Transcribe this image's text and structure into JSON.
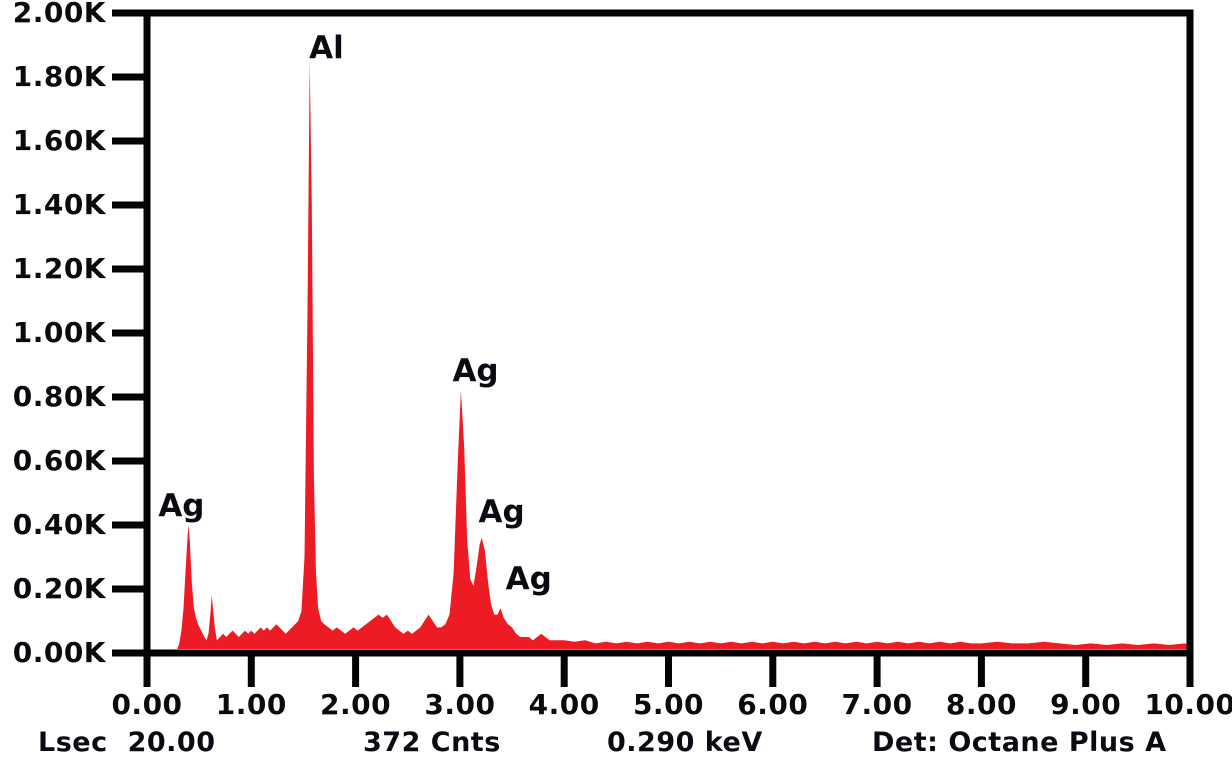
{
  "colors": {
    "spectrum_red": "#ED1C24",
    "axis_black": "#030303",
    "text_black": "#0a0a12",
    "background": "#ffffff"
  },
  "status_bar": {
    "lsec_label": "Lsec",
    "lsec_value": "20.00",
    "counts": "372 Cnts",
    "energy": "0.290 keV",
    "detector": "Det: Octane Plus A"
  },
  "chart_data": {
    "type": "area",
    "title": "",
    "xlabel": "",
    "ylabel": "",
    "x_unit": "keV",
    "y_unit": "K counts",
    "xlim": [
      0,
      10
    ],
    "ylim": [
      0,
      2.0
    ],
    "grid": false,
    "legend": false,
    "x_ticks": [
      {
        "value": 0,
        "label": "0.00"
      },
      {
        "value": 1,
        "label": "1.00"
      },
      {
        "value": 2,
        "label": "2.00"
      },
      {
        "value": 3,
        "label": "3.00"
      },
      {
        "value": 4,
        "label": "4.00"
      },
      {
        "value": 5,
        "label": "5.00"
      },
      {
        "value": 6,
        "label": "6.00"
      },
      {
        "value": 7,
        "label": "7.00"
      },
      {
        "value": 8,
        "label": "8.00"
      },
      {
        "value": 9,
        "label": "9.00"
      },
      {
        "value": 10,
        "label": "10.00"
      }
    ],
    "y_ticks": [
      {
        "value": 0.0,
        "label": "0.00K"
      },
      {
        "value": 0.2,
        "label": "0.20K"
      },
      {
        "value": 0.4,
        "label": "0.40K"
      },
      {
        "value": 0.6,
        "label": "0.60K"
      },
      {
        "value": 0.8,
        "label": "0.80K"
      },
      {
        "value": 1.0,
        "label": "1.00K"
      },
      {
        "value": 1.2,
        "label": "1.20K"
      },
      {
        "value": 1.4,
        "label": "1.40K"
      },
      {
        "value": 1.6,
        "label": "1.60K"
      },
      {
        "value": 1.8,
        "label": "1.80K"
      },
      {
        "value": 2.0,
        "label": "2.00K"
      }
    ],
    "peak_labels": [
      {
        "label": "Ag",
        "e": 0.33,
        "k": 0.46
      },
      {
        "label": "Al",
        "e": 1.72,
        "k": 1.89
      },
      {
        "label": "Ag",
        "e": 3.15,
        "k": 0.88
      },
      {
        "label": "Ag",
        "e": 3.4,
        "k": 0.44
      },
      {
        "label": "Ag",
        "e": 3.66,
        "k": 0.23
      }
    ],
    "series": [
      {
        "name": "EDS spectrum",
        "color": "#ED1C24",
        "points": [
          [
            0.29,
            0
          ],
          [
            0.31,
            0.03
          ],
          [
            0.33,
            0.07
          ],
          [
            0.35,
            0.14
          ],
          [
            0.37,
            0.26
          ],
          [
            0.39,
            0.37
          ],
          [
            0.4,
            0.4
          ],
          [
            0.41,
            0.35
          ],
          [
            0.43,
            0.22
          ],
          [
            0.45,
            0.14
          ],
          [
            0.47,
            0.11
          ],
          [
            0.49,
            0.09
          ],
          [
            0.52,
            0.07
          ],
          [
            0.55,
            0.05
          ],
          [
            0.57,
            0.04
          ],
          [
            0.59,
            0.06
          ],
          [
            0.61,
            0.13
          ],
          [
            0.62,
            0.18
          ],
          [
            0.63,
            0.15
          ],
          [
            0.65,
            0.08
          ],
          [
            0.67,
            0.04
          ],
          [
            0.7,
            0.05
          ],
          [
            0.73,
            0.06
          ],
          [
            0.76,
            0.05
          ],
          [
            0.79,
            0.06
          ],
          [
            0.82,
            0.07
          ],
          [
            0.85,
            0.06
          ],
          [
            0.88,
            0.05
          ],
          [
            0.91,
            0.06
          ],
          [
            0.94,
            0.07
          ],
          [
            0.97,
            0.06
          ],
          [
            1.0,
            0.07
          ],
          [
            1.03,
            0.06
          ],
          [
            1.06,
            0.07
          ],
          [
            1.09,
            0.08
          ],
          [
            1.12,
            0.07
          ],
          [
            1.15,
            0.08
          ],
          [
            1.18,
            0.07
          ],
          [
            1.21,
            0.08
          ],
          [
            1.24,
            0.09
          ],
          [
            1.27,
            0.08
          ],
          [
            1.3,
            0.07
          ],
          [
            1.33,
            0.06
          ],
          [
            1.36,
            0.07
          ],
          [
            1.39,
            0.08
          ],
          [
            1.42,
            0.09
          ],
          [
            1.45,
            0.1
          ],
          [
            1.48,
            0.13
          ],
          [
            1.51,
            0.3
          ],
          [
            1.54,
            1.1
          ],
          [
            1.56,
            1.85
          ],
          [
            1.58,
            1.4
          ],
          [
            1.6,
            0.55
          ],
          [
            1.62,
            0.25
          ],
          [
            1.64,
            0.14
          ],
          [
            1.67,
            0.1
          ],
          [
            1.7,
            0.09
          ],
          [
            1.74,
            0.08
          ],
          [
            1.78,
            0.07
          ],
          [
            1.82,
            0.08
          ],
          [
            1.86,
            0.07
          ],
          [
            1.9,
            0.06
          ],
          [
            1.94,
            0.07
          ],
          [
            1.98,
            0.08
          ],
          [
            2.02,
            0.07
          ],
          [
            2.06,
            0.08
          ],
          [
            2.1,
            0.09
          ],
          [
            2.14,
            0.1
          ],
          [
            2.18,
            0.11
          ],
          [
            2.22,
            0.12
          ],
          [
            2.26,
            0.11
          ],
          [
            2.3,
            0.12
          ],
          [
            2.34,
            0.1
          ],
          [
            2.38,
            0.08
          ],
          [
            2.42,
            0.07
          ],
          [
            2.46,
            0.06
          ],
          [
            2.5,
            0.07
          ],
          [
            2.54,
            0.06
          ],
          [
            2.58,
            0.07
          ],
          [
            2.62,
            0.08
          ],
          [
            2.66,
            0.1
          ],
          [
            2.7,
            0.12
          ],
          [
            2.74,
            0.1
          ],
          [
            2.78,
            0.08
          ],
          [
            2.82,
            0.08
          ],
          [
            2.86,
            0.09
          ],
          [
            2.9,
            0.12
          ],
          [
            2.94,
            0.25
          ],
          [
            2.98,
            0.6
          ],
          [
            3.01,
            0.82
          ],
          [
            3.04,
            0.65
          ],
          [
            3.07,
            0.35
          ],
          [
            3.1,
            0.23
          ],
          [
            3.13,
            0.21
          ],
          [
            3.16,
            0.27
          ],
          [
            3.19,
            0.34
          ],
          [
            3.21,
            0.36
          ],
          [
            3.24,
            0.32
          ],
          [
            3.27,
            0.22
          ],
          [
            3.3,
            0.15
          ],
          [
            3.33,
            0.12
          ],
          [
            3.36,
            0.12
          ],
          [
            3.39,
            0.14
          ],
          [
            3.42,
            0.11
          ],
          [
            3.46,
            0.09
          ],
          [
            3.5,
            0.08
          ],
          [
            3.54,
            0.06
          ],
          [
            3.58,
            0.05
          ],
          [
            3.62,
            0.05
          ],
          [
            3.66,
            0.05
          ],
          [
            3.7,
            0.04
          ],
          [
            3.74,
            0.05
          ],
          [
            3.78,
            0.06
          ],
          [
            3.82,
            0.05
          ],
          [
            3.86,
            0.04
          ],
          [
            3.92,
            0.04
          ],
          [
            4.0,
            0.04
          ],
          [
            4.1,
            0.035
          ],
          [
            4.2,
            0.04
          ],
          [
            4.3,
            0.03
          ],
          [
            4.4,
            0.035
          ],
          [
            4.5,
            0.03
          ],
          [
            4.6,
            0.035
          ],
          [
            4.7,
            0.03
          ],
          [
            4.8,
            0.035
          ],
          [
            4.9,
            0.03
          ],
          [
            5.0,
            0.035
          ],
          [
            5.1,
            0.03
          ],
          [
            5.2,
            0.035
          ],
          [
            5.3,
            0.03
          ],
          [
            5.4,
            0.035
          ],
          [
            5.5,
            0.03
          ],
          [
            5.6,
            0.035
          ],
          [
            5.7,
            0.03
          ],
          [
            5.8,
            0.035
          ],
          [
            5.9,
            0.03
          ],
          [
            6.0,
            0.035
          ],
          [
            6.1,
            0.03
          ],
          [
            6.2,
            0.035
          ],
          [
            6.3,
            0.03
          ],
          [
            6.4,
            0.035
          ],
          [
            6.5,
            0.03
          ],
          [
            6.6,
            0.035
          ],
          [
            6.7,
            0.03
          ],
          [
            6.8,
            0.035
          ],
          [
            6.9,
            0.03
          ],
          [
            7.0,
            0.035
          ],
          [
            7.1,
            0.03
          ],
          [
            7.2,
            0.035
          ],
          [
            7.3,
            0.03
          ],
          [
            7.4,
            0.035
          ],
          [
            7.5,
            0.03
          ],
          [
            7.6,
            0.035
          ],
          [
            7.7,
            0.03
          ],
          [
            7.8,
            0.035
          ],
          [
            7.9,
            0.03
          ],
          [
            8.0,
            0.03
          ],
          [
            8.15,
            0.035
          ],
          [
            8.3,
            0.03
          ],
          [
            8.45,
            0.03
          ],
          [
            8.6,
            0.035
          ],
          [
            8.75,
            0.03
          ],
          [
            8.9,
            0.025
          ],
          [
            9.05,
            0.03
          ],
          [
            9.2,
            0.025
          ],
          [
            9.35,
            0.03
          ],
          [
            9.5,
            0.025
          ],
          [
            9.65,
            0.03
          ],
          [
            9.8,
            0.025
          ],
          [
            9.95,
            0.03
          ],
          [
            10.0,
            0.025
          ]
        ]
      }
    ]
  }
}
